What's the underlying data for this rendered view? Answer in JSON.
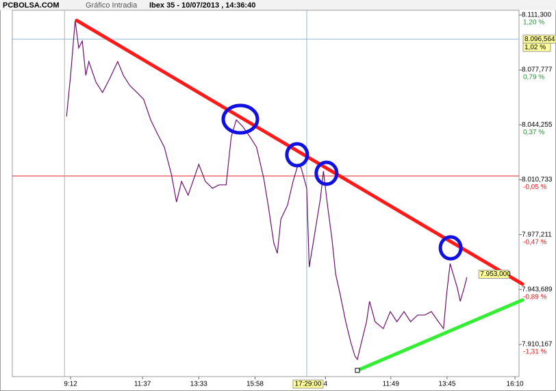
{
  "chart_data": {
    "type": "line",
    "site": "PCBOLSA.COM",
    "subtitle": "Gráfico Intradia",
    "title": "Ibex 35 - 10/07/2013 , 14:36:40",
    "color": "#6b0f6b",
    "x": [
      10.7,
      11.5,
      12.4,
      13.1,
      13.8,
      14.5,
      15.1,
      16.5,
      17.8,
      19.2,
      20.8,
      21.9,
      23.2,
      24.6,
      25.9,
      27.3,
      28.6,
      30.0,
      31.4,
      32.4,
      33.4,
      34.7,
      36.8,
      38.1,
      39.5,
      40.8,
      42.2,
      43.2,
      44.2,
      45.5,
      46.9,
      48.2,
      49.6,
      50.5,
      51.6,
      52.3,
      53.0,
      54.3,
      55.4,
      56.4,
      57.0,
      58.1,
      58.6,
      59.7,
      60.8,
      61.4,
      62.2,
      63.1,
      63.8,
      64.7,
      65.8,
      66.8,
      67.6,
      68.1,
      68.9,
      69.9,
      70.5,
      71.6,
      73.2,
      74.6,
      75.9,
      77.3,
      78.6,
      80.0,
      81.4,
      82.7,
      84.1,
      85.1,
      85.7,
      86.4,
      87.0,
      87.8,
      88.4,
      89.2,
      89.7
    ],
    "values": [
      8049.4,
      8074.5,
      8108.0,
      8091.2,
      8095.4,
      8074.5,
      8082.9,
      8070.3,
      8064.0,
      8072.4,
      8082.9,
      8074.5,
      8068.2,
      8064.0,
      8059.9,
      8047.3,
      8039.0,
      8030.6,
      8013.9,
      7997.1,
      8009.7,
      8001.3,
      8020.1,
      8009.7,
      8005.5,
      8007.6,
      8007.6,
      8036.9,
      8047.3,
      8043.1,
      8036.9,
      8030.6,
      8011.8,
      7995.1,
      7972.1,
      7965.8,
      7986.7,
      7995.1,
      8009.7,
      8020.1,
      8018.0,
      8005.5,
      7957.4,
      7978.3,
      7999.2,
      8016.0,
      7995.1,
      7974.1,
      7953.2,
      7940.7,
      7924.0,
      7911.4,
      7903.1,
      7901.0,
      7911.4,
      7924.0,
      7936.5,
      7924.0,
      7919.8,
      7930.2,
      7924.0,
      7930.2,
      7924.0,
      7928.1,
      7928.1,
      7930.2,
      7924.0,
      7919.8,
      7940.7,
      7959.5,
      7953.2,
      7944.9,
      7936.5,
      7944.9,
      7951.1
    ],
    "xlim": [
      0,
      100
    ],
    "ylim": [
      7890.5,
      8114.2
    ],
    "xticks": [
      {
        "value": 11.5,
        "label": "9:12"
      },
      {
        "value": 25.7,
        "label": "11:37"
      },
      {
        "value": 36.8,
        "label": "13:33"
      },
      {
        "value": 47.9,
        "label": "15:58"
      },
      {
        "value": 61.8,
        "label": "4"
      },
      {
        "value": 74.7,
        "label": "11:49"
      },
      {
        "value": 85.8,
        "label": "13:45"
      },
      {
        "value": 99.2,
        "label": "16:10"
      }
    ],
    "yticks": [
      {
        "value": 8111.3,
        "label": "8.111,300"
      },
      {
        "value": 8077.777,
        "label": "8.077,777"
      },
      {
        "value": 8044.255,
        "label": "8.044,255"
      },
      {
        "value": 8010.733,
        "label": "8.010,733"
      },
      {
        "value": 7977.211,
        "label": "7.977,211"
      },
      {
        "value": 7943.689,
        "label": "7.943,689"
      },
      {
        "value": 7910.167,
        "label": "7.910,167"
      }
    ],
    "ytick_pct": [
      {
        "label": "1,20 %",
        "color": "#2e8b3a"
      },
      {
        "label": "0,79 %",
        "color": "#2e8b3a"
      },
      {
        "label": "0,37 %",
        "color": "#2e8b3a"
      },
      {
        "label": "-0,05 %",
        "color": "#e02020"
      },
      {
        "label": "-0,47 %",
        "color": "#e02020"
      },
      {
        "label": "-0,89 %",
        "color": "#e02020"
      },
      {
        "label": "-1,31 %",
        "color": "#e02020"
      }
    ],
    "grid": false,
    "hlines": [
      {
        "value": 8096.564,
        "color": "#8ab8dc",
        "label": "8.096,564",
        "pct": "1,02 %"
      },
      {
        "value": 8013,
        "color": "#e02020"
      }
    ],
    "vlines": [
      {
        "value": 10.3,
        "color": "#b0b0b0"
      },
      {
        "value": 58.1,
        "color": "#8ab8dc",
        "label": "17:29:00"
      }
    ],
    "last": {
      "value": 7953,
      "label": "7.953,000"
    },
    "trendlines": [
      {
        "color": "#ff1a1a",
        "x": [
          12.7,
          100.7
        ],
        "y": [
          8108.0,
          7947.0
        ]
      },
      {
        "color": "#33ee33",
        "x": [
          68.1,
          100.7
        ],
        "y": [
          7894.3,
          7937.3
        ]
      }
    ],
    "circles": [
      {
        "x": 45.0,
        "y": 8047.7
      },
      {
        "x": 56.2,
        "y": 8026.0
      },
      {
        "x": 62.0,
        "y": 8014.7
      },
      {
        "x": 86.5,
        "y": 7969.1
      }
    ],
    "circle_color": "#1010e0"
  }
}
